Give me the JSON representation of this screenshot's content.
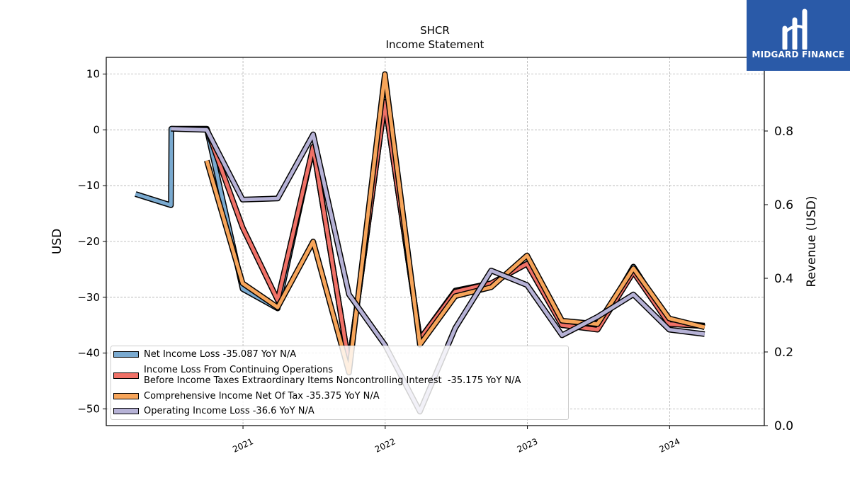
{
  "chart_data": {
    "type": "line",
    "title": "SHCR",
    "subtitle": "Income Statement",
    "ylabel": "USD",
    "ylabel_right": "Revenue (USD)",
    "xlabel": "",
    "ylim": [
      -53,
      13
    ],
    "ylim_right": [
      0.0,
      1.0
    ],
    "yticks": [
      10,
      0,
      -10,
      -20,
      -30,
      -40,
      -50
    ],
    "yticks_right": [
      0.0,
      0.2,
      0.4,
      0.6,
      0.8
    ],
    "xticks": [
      "2021",
      "2022",
      "2023",
      "2024"
    ],
    "grid": true,
    "legend_position": "lower-left",
    "series": [
      {
        "name": "Net Income Loss  -35.087 YoY N/A",
        "color": "#7aaad0",
        "points": [
          [
            "2020-03-31",
            -11.5
          ],
          [
            "2020-06-30",
            -13.5
          ],
          [
            "2020-07-01",
            0.2
          ],
          [
            "2020-09-30",
            0.2
          ],
          [
            "2020-12-31",
            -28.5
          ],
          [
            "2021-03-31",
            -32.0
          ],
          [
            "2021-06-30",
            -3.0
          ],
          [
            "2021-09-30",
            -42.0
          ],
          [
            "2021-12-31",
            5.0
          ],
          [
            "2022-03-31",
            -37.5
          ],
          [
            "2022-06-30",
            -28.8
          ],
          [
            "2022-09-30",
            -27.5
          ],
          [
            "2022-12-31",
            -24.0
          ],
          [
            "2023-03-31",
            -35.0
          ],
          [
            "2023-06-30",
            -35.5
          ],
          [
            "2023-09-30",
            -24.5
          ],
          [
            "2023-12-31",
            -34.5
          ],
          [
            "2024-03-31",
            -35.087
          ]
        ]
      },
      {
        "name": "Income Loss From Continuing Operations\nBefore Income Taxes Extraordinary Items Noncontrolling Interest  -35.175 YoY N/A",
        "color": "#f07167",
        "points": [
          [
            "2020-09-30",
            0.2
          ],
          [
            "2020-12-31",
            -17.5
          ],
          [
            "2021-03-31",
            -30.5
          ],
          [
            "2021-06-30",
            -3.0
          ],
          [
            "2021-09-30",
            -42.0
          ],
          [
            "2021-12-31",
            5.0
          ],
          [
            "2022-03-31",
            -37.5
          ],
          [
            "2022-06-30",
            -29.0
          ],
          [
            "2022-09-30",
            -27.5
          ],
          [
            "2022-12-31",
            -24.0
          ],
          [
            "2023-03-31",
            -35.0
          ],
          [
            "2023-06-30",
            -35.8
          ],
          [
            "2023-09-30",
            -25.5
          ],
          [
            "2023-12-31",
            -34.8
          ],
          [
            "2024-03-31",
            -35.175
          ]
        ]
      },
      {
        "name": "Comprehensive Income Net Of Tax  -35.375 YoY N/A",
        "color": "#f7a55a",
        "points": [
          [
            "2020-09-30",
            -5.5
          ],
          [
            "2020-12-31",
            -27.5
          ],
          [
            "2021-03-31",
            -31.8
          ],
          [
            "2021-06-30",
            -20.0
          ],
          [
            "2021-09-30",
            -43.5
          ],
          [
            "2021-12-31",
            10.0
          ],
          [
            "2022-03-31",
            -38.5
          ],
          [
            "2022-06-30",
            -29.8
          ],
          [
            "2022-09-30",
            -28.2
          ],
          [
            "2022-12-31",
            -22.5
          ],
          [
            "2023-03-31",
            -34.2
          ],
          [
            "2023-06-30",
            -34.8
          ],
          [
            "2023-09-30",
            -24.8
          ],
          [
            "2023-12-31",
            -33.8
          ],
          [
            "2024-03-31",
            -35.375
          ]
        ]
      },
      {
        "name": "Operating Income Loss  -36.6 YoY N/A",
        "color": "#b6b2d6",
        "points": [
          [
            "2020-06-30",
            0.2
          ],
          [
            "2020-09-30",
            0.0
          ],
          [
            "2020-12-31",
            -12.5
          ],
          [
            "2021-03-31",
            -12.3
          ],
          [
            "2021-06-30",
            -0.8
          ],
          [
            "2021-09-30",
            -29.5
          ],
          [
            "2021-12-31",
            -38.5
          ],
          [
            "2022-03-31",
            -50.5
          ],
          [
            "2022-06-30",
            -35.5
          ],
          [
            "2022-09-30",
            -25.2
          ],
          [
            "2022-12-31",
            -27.8
          ],
          [
            "2023-03-31",
            -36.8
          ],
          [
            "2023-06-30",
            -33.5
          ],
          [
            "2023-09-30",
            -29.5
          ],
          [
            "2023-12-31",
            -35.8
          ],
          [
            "2024-03-31",
            -36.6
          ]
        ]
      }
    ]
  },
  "logo": {
    "text": "MIDGARD FINANCE",
    "background": "#2a5aa8"
  }
}
